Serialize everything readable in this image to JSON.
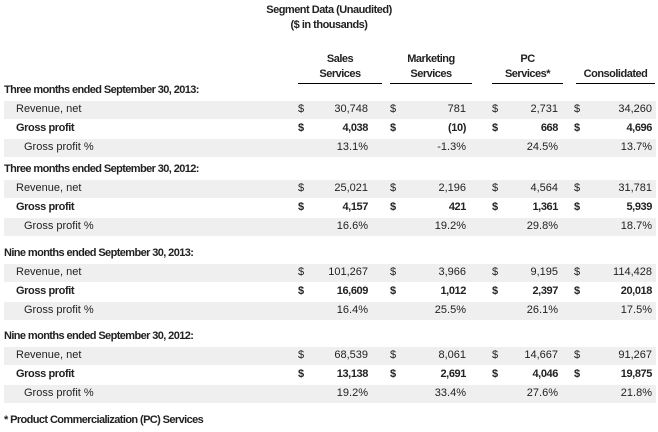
{
  "title": "Segment Data (Unaudited)",
  "subtitle": "($ in thousands)",
  "columns": [
    {
      "line1": "Sales",
      "line2": "Services"
    },
    {
      "line1": "Marketing",
      "line2": "Services"
    },
    {
      "line1": "PC",
      "line2": "Services*"
    },
    {
      "line1": "",
      "line2": "Consolidated"
    }
  ],
  "currency_symbol": "$",
  "sections": [
    {
      "title": "Three months ended September 30, 2013:",
      "revenue": {
        "label": "Revenue, net",
        "values": [
          "30,748",
          "781",
          "2,731",
          "34,260"
        ]
      },
      "gross_profit": {
        "label": "Gross profit",
        "values": [
          "4,038",
          "(10)",
          "668",
          "4,696"
        ]
      },
      "gross_profit_pct": {
        "label": "Gross profit %",
        "values": [
          "13.1%",
          "-1.3%",
          "24.5%",
          "13.7%"
        ]
      }
    },
    {
      "title": "Three months ended September 30, 2012:",
      "revenue": {
        "label": "Revenue, net",
        "values": [
          "25,021",
          "2,196",
          "4,564",
          "31,781"
        ]
      },
      "gross_profit": {
        "label": "Gross profit",
        "values": [
          "4,157",
          "421",
          "1,361",
          "5,939"
        ]
      },
      "gross_profit_pct": {
        "label": "Gross profit %",
        "values": [
          "16.6%",
          "19.2%",
          "29.8%",
          "18.7%"
        ]
      }
    },
    {
      "title": "Nine months ended September 30, 2013:",
      "revenue": {
        "label": "Revenue, net",
        "values": [
          "101,267",
          "3,966",
          "9,195",
          "114,428"
        ]
      },
      "gross_profit": {
        "label": "Gross profit",
        "values": [
          "16,609",
          "1,012",
          "2,397",
          "20,018"
        ]
      },
      "gross_profit_pct": {
        "label": "Gross profit %",
        "values": [
          "16.4%",
          "25.5%",
          "26.1%",
          "17.5%"
        ]
      }
    },
    {
      "title": "Nine months ended September 30, 2012:",
      "revenue": {
        "label": "Revenue, net",
        "values": [
          "68,539",
          "8,061",
          "14,667",
          "91,267"
        ]
      },
      "gross_profit": {
        "label": "Gross profit",
        "values": [
          "13,138",
          "2,691",
          "4,046",
          "19,875"
        ]
      },
      "gross_profit_pct": {
        "label": "Gross profit %",
        "values": [
          "19.2%",
          "33.4%",
          "27.6%",
          "21.8%"
        ]
      }
    }
  ],
  "footnote": "* Product Commercialization (PC) Services"
}
